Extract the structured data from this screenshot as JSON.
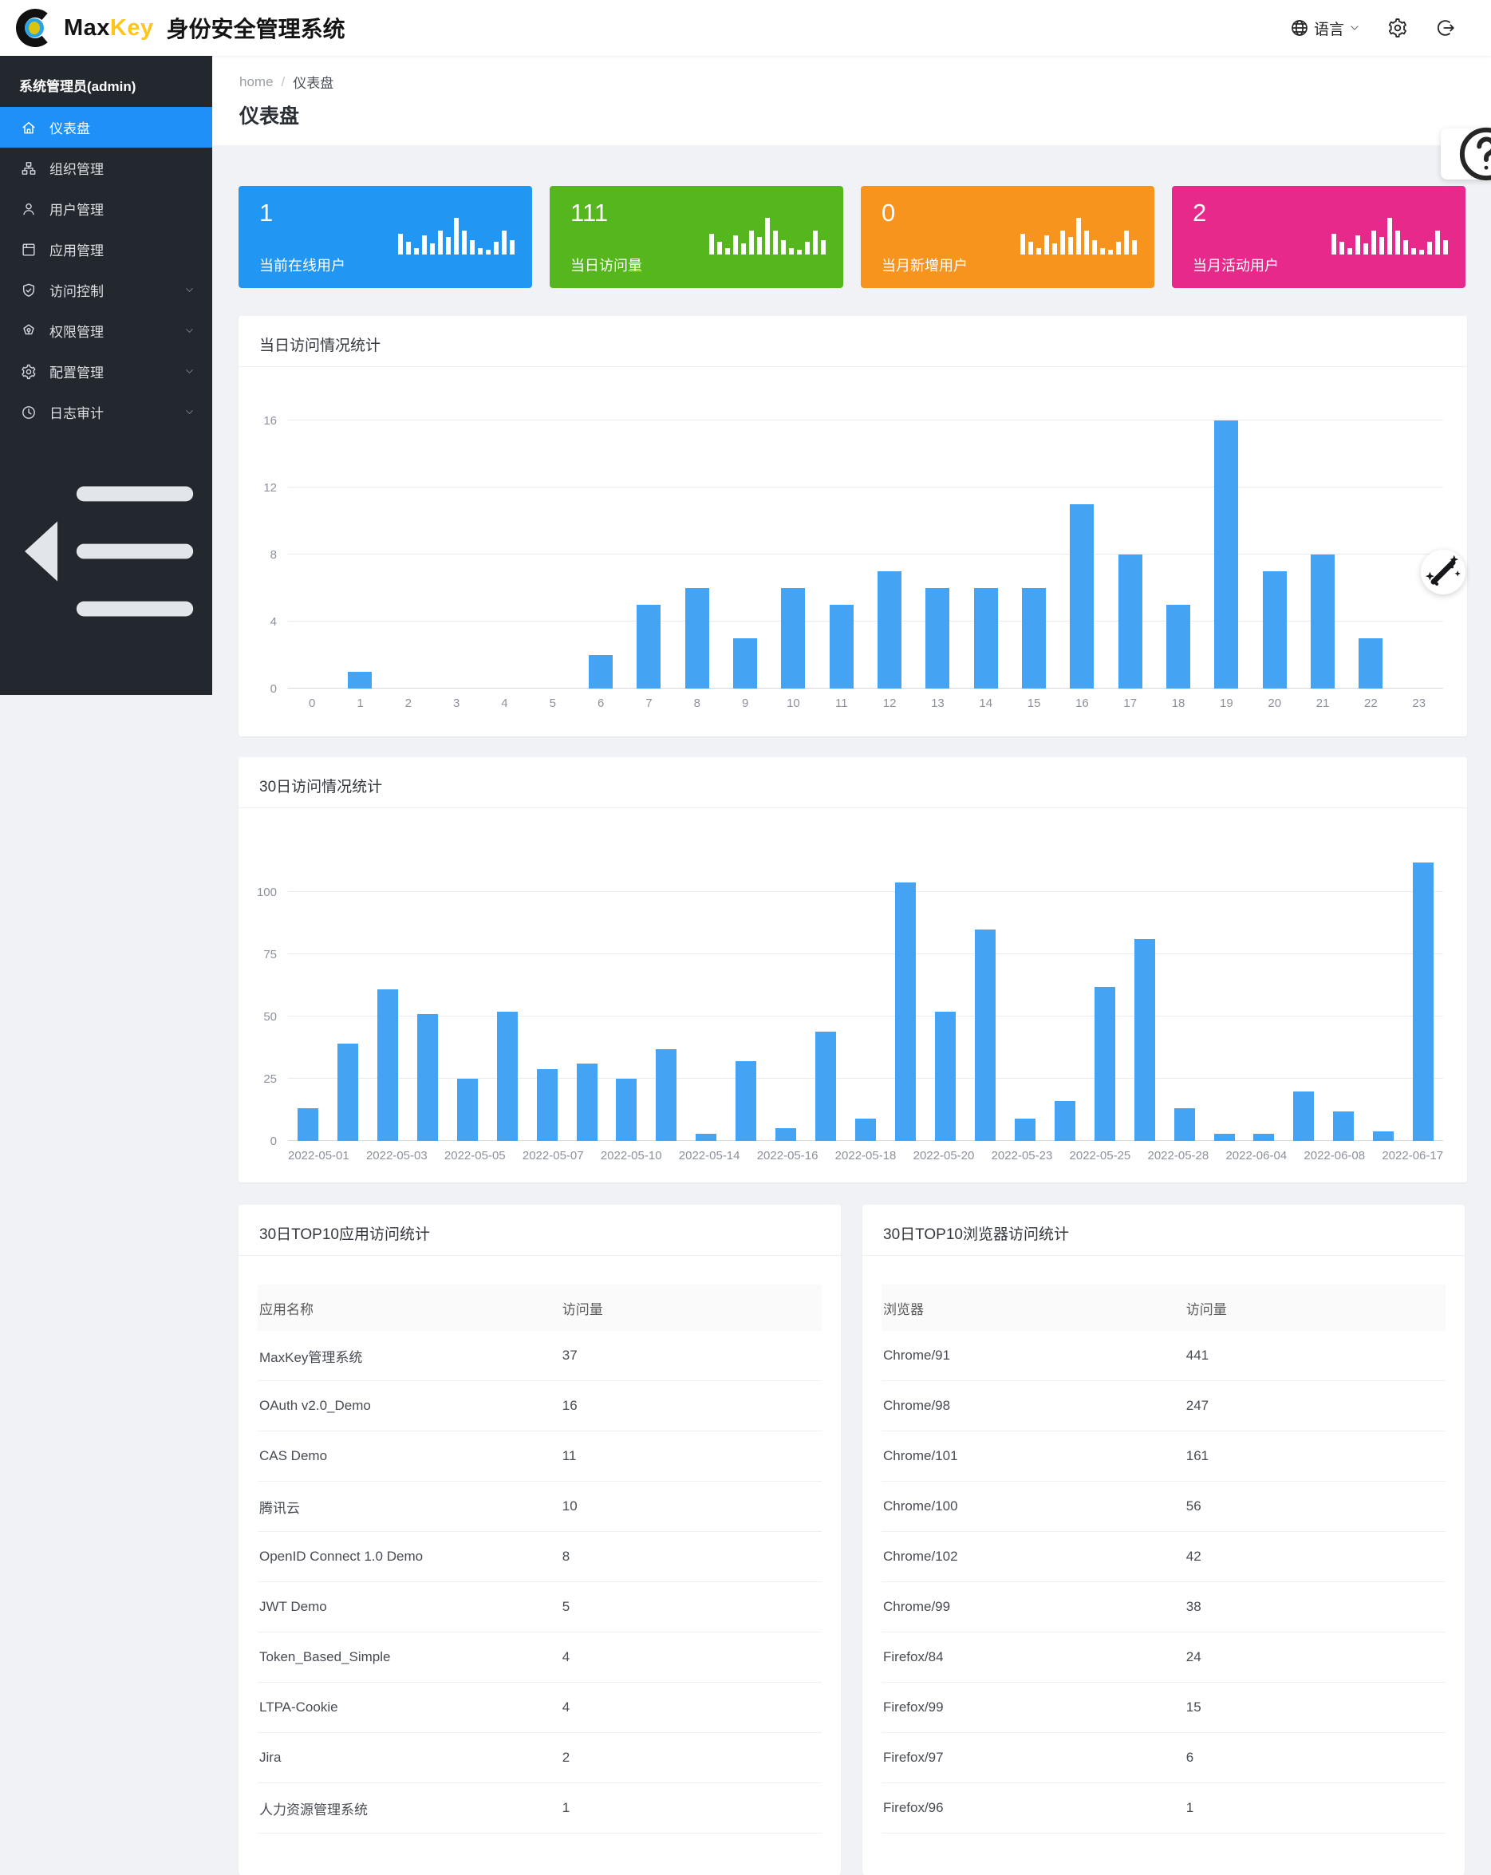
{
  "header": {
    "brand": {
      "max": "Max",
      "key": "Key",
      "product": "身份安全管理系统"
    },
    "actions": {
      "language_label": "语言",
      "language_icon": "globe-icon",
      "settings_icon": "gear-icon",
      "logout_icon": "logout-icon"
    }
  },
  "sidebar": {
    "admin_label": "系统管理员(admin)",
    "items": [
      {
        "label": "仪表盘",
        "icon": "dashboard-icon",
        "active": true,
        "expandable": false
      },
      {
        "label": "组织管理",
        "icon": "org-icon",
        "active": false,
        "expandable": false
      },
      {
        "label": "用户管理",
        "icon": "user-icon",
        "active": false,
        "expandable": false
      },
      {
        "label": "应用管理",
        "icon": "apps-icon",
        "active": false,
        "expandable": false
      },
      {
        "label": "访问控制",
        "icon": "access-control-icon",
        "active": false,
        "expandable": true
      },
      {
        "label": "权限管理",
        "icon": "permission-icon",
        "active": false,
        "expandable": true
      },
      {
        "label": "配置管理",
        "icon": "config-icon",
        "active": false,
        "expandable": true
      },
      {
        "label": "日志审计",
        "icon": "audit-clock-icon",
        "active": false,
        "expandable": true
      }
    ],
    "collapse_icon": "menu-fold-icon"
  },
  "breadcrumb": {
    "home": "home",
    "separator": "/",
    "current": "仪表盘"
  },
  "page_title": "仪表盘",
  "stat_cards": [
    {
      "value": "1",
      "label": "当前在线用户",
      "color": "#2196f3",
      "icon": "mini-bar-chart-icon"
    },
    {
      "value": "111",
      "label": "当日访问量",
      "color": "#55b61d",
      "icon": "mini-bar-chart-icon"
    },
    {
      "value": "0",
      "label": "当月新增用户",
      "color": "#f7941e",
      "icon": "mini-bar-chart-icon"
    },
    {
      "value": "2",
      "label": "当月活动用户",
      "color": "#e7298c",
      "icon": "mini-bar-chart-icon"
    }
  ],
  "chart_data": [
    {
      "type": "bar",
      "title": "当日访问情况统计",
      "categories": [
        "0",
        "1",
        "2",
        "3",
        "4",
        "5",
        "6",
        "7",
        "8",
        "9",
        "10",
        "11",
        "12",
        "13",
        "14",
        "15",
        "16",
        "17",
        "18",
        "19",
        "20",
        "21",
        "22",
        "23"
      ],
      "values": [
        0,
        1,
        0,
        0,
        0,
        0,
        2,
        5,
        6,
        3,
        6,
        5,
        7,
        6,
        6,
        6,
        11,
        8,
        5,
        16,
        7,
        8,
        3,
        0
      ],
      "xlabel": "",
      "ylabel": "",
      "ylim": [
        0,
        16
      ],
      "yticks": [
        0,
        4,
        8,
        12,
        16
      ],
      "grid": true,
      "legend": "none",
      "bar_color": "#45a3f3"
    },
    {
      "type": "bar",
      "title": "30日访问情况统计",
      "categories": [
        "2022-05-01",
        "",
        "2022-05-03",
        "",
        "2022-05-05",
        "",
        "2022-05-07",
        "",
        "2022-05-10",
        "",
        "2022-05-14",
        "",
        "2022-05-16",
        "",
        "2022-05-18",
        "",
        "2022-05-20",
        "",
        "2022-05-23",
        "",
        "2022-05-25",
        "",
        "2022-05-28",
        "",
        "2022-06-04",
        "",
        "2022-06-08",
        "",
        "2022-06-17"
      ],
      "values": [
        13,
        39,
        61,
        51,
        25,
        52,
        29,
        31,
        25,
        37,
        3,
        32,
        5,
        44,
        9,
        104,
        52,
        85,
        9,
        16,
        62,
        81,
        13,
        3,
        3,
        20,
        12,
        4,
        112
      ],
      "xlabel": "",
      "ylabel": "",
      "ylim": [
        0,
        112
      ],
      "yticks": [
        0,
        25,
        50,
        75,
        100
      ],
      "grid": true,
      "legend": "none",
      "bar_color": "#45a3f3"
    }
  ],
  "tables": [
    {
      "title": "30日TOP10应用访问统计",
      "columns": [
        "应用名称",
        "访问量"
      ],
      "rows": [
        [
          "MaxKey管理系统",
          "37"
        ],
        [
          "OAuth v2.0_Demo",
          "16"
        ],
        [
          "CAS Demo",
          "11"
        ],
        [
          "腾讯云",
          "10"
        ],
        [
          "OpenID Connect 1.0 Demo",
          "8"
        ],
        [
          "JWT Demo",
          "5"
        ],
        [
          "Token_Based_Simple",
          "4"
        ],
        [
          "LTPA-Cookie",
          "4"
        ],
        [
          "Jira",
          "2"
        ],
        [
          "人力资源管理系统",
          "1"
        ]
      ]
    },
    {
      "title": "30日TOP10浏览器访问统计",
      "columns": [
        "浏览器",
        "访问量"
      ],
      "rows": [
        [
          "Chrome/91",
          "441"
        ],
        [
          "Chrome/98",
          "247"
        ],
        [
          "Chrome/101",
          "161"
        ],
        [
          "Chrome/100",
          "56"
        ],
        [
          "Chrome/102",
          "42"
        ],
        [
          "Chrome/99",
          "38"
        ],
        [
          "Firefox/84",
          "24"
        ],
        [
          "Firefox/99",
          "15"
        ],
        [
          "Firefox/97",
          "6"
        ],
        [
          "Firefox/96",
          "1"
        ]
      ]
    }
  ],
  "floating": {
    "help_icon": "question-circle-icon",
    "wand_icon": "magic-wand-icon"
  }
}
